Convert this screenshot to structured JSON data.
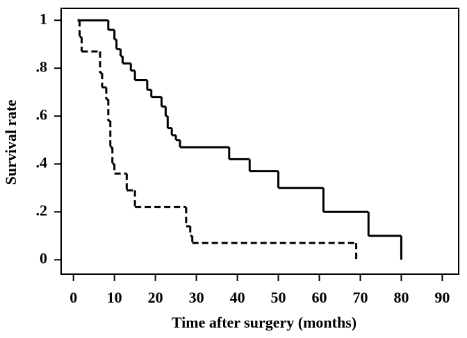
{
  "chart_data": {
    "type": "step",
    "x_label": "Time after surgery (months)",
    "y_label": "Survival rate",
    "xlim": [
      -3,
      94
    ],
    "ylim": [
      -0.06,
      1.05
    ],
    "xticks": [
      0,
      10,
      20,
      30,
      40,
      50,
      60,
      70,
      80,
      90
    ],
    "yticks": [
      {
        "value": 0,
        "label": "0"
      },
      {
        "value": 0.2,
        "label": ".2"
      },
      {
        "value": 0.4,
        "label": ".4"
      },
      {
        "value": 0.6,
        "label": ".6"
      },
      {
        "value": 0.8,
        "label": ".8"
      },
      {
        "value": 1,
        "label": "1"
      }
    ],
    "series": [
      {
        "color": "#000000",
        "style": "solid",
        "x": [
          1,
          8.5,
          10,
          10.5,
          11.5,
          12,
          14,
          15,
          18,
          19,
          21.5,
          22.5,
          23,
          24,
          25,
          26,
          38,
          43,
          50,
          61,
          72,
          80
        ],
        "values": [
          1,
          0.96,
          0.92,
          0.88,
          0.85,
          0.82,
          0.79,
          0.75,
          0.71,
          0.68,
          0.64,
          0.6,
          0.55,
          0.52,
          0.5,
          0.47,
          0.42,
          0.37,
          0.3,
          0.2,
          0.1,
          0
        ]
      },
      {
        "color": "#000000",
        "style": "dashed",
        "x": [
          1,
          1.5,
          2,
          6.5,
          7,
          8,
          8.5,
          9,
          9.5,
          10,
          13,
          15,
          27.5,
          28.5,
          29,
          69
        ],
        "values": [
          1,
          0.93,
          0.87,
          0.78,
          0.72,
          0.67,
          0.58,
          0.47,
          0.4,
          0.36,
          0.29,
          0.22,
          0.14,
          0.1,
          0.07,
          0
        ]
      }
    ]
  }
}
